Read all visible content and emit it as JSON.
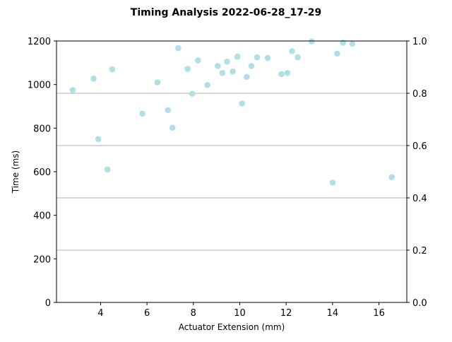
{
  "chart_data": {
    "type": "scatter",
    "title": "Timing Analysis 2022-06-28_17-29",
    "xlabel": "Actuator Extension (mm)",
    "ylabel": "Time (ms)",
    "xlim": [
      2.1,
      17.2
    ],
    "ylim": [
      0,
      1200
    ],
    "y2lim": [
      0,
      1.0
    ],
    "xticks": [
      4,
      6,
      8,
      10,
      12,
      14,
      16
    ],
    "yticks": [
      0,
      200,
      400,
      600,
      800,
      1000,
      1200
    ],
    "y2ticks": [
      0.0,
      0.2,
      0.4,
      0.6,
      0.8,
      1.0
    ],
    "y2tick_labels": [
      "0.0",
      "0.2",
      "0.4",
      "0.6",
      "0.8",
      "1.0"
    ],
    "grid": "horizontal lines at right-axis ticks",
    "marker_color": "#b0e0e6",
    "grid_color": "#b0b0b0",
    "points": [
      {
        "x": 2.8,
        "y": 975
      },
      {
        "x": 3.7,
        "y": 1027
      },
      {
        "x": 3.9,
        "y": 750
      },
      {
        "x": 4.3,
        "y": 610
      },
      {
        "x": 4.5,
        "y": 1070
      },
      {
        "x": 5.8,
        "y": 867
      },
      {
        "x": 6.45,
        "y": 1010
      },
      {
        "x": 6.9,
        "y": 883
      },
      {
        "x": 7.1,
        "y": 802
      },
      {
        "x": 7.35,
        "y": 1167
      },
      {
        "x": 7.75,
        "y": 1072
      },
      {
        "x": 7.95,
        "y": 958
      },
      {
        "x": 8.2,
        "y": 1111
      },
      {
        "x": 8.6,
        "y": 998
      },
      {
        "x": 9.05,
        "y": 1085
      },
      {
        "x": 9.25,
        "y": 1053
      },
      {
        "x": 9.45,
        "y": 1105
      },
      {
        "x": 9.7,
        "y": 1060
      },
      {
        "x": 9.9,
        "y": 1128
      },
      {
        "x": 10.1,
        "y": 913
      },
      {
        "x": 10.3,
        "y": 1035
      },
      {
        "x": 10.5,
        "y": 1085
      },
      {
        "x": 10.75,
        "y": 1125
      },
      {
        "x": 11.2,
        "y": 1122
      },
      {
        "x": 11.8,
        "y": 1048
      },
      {
        "x": 12.05,
        "y": 1053
      },
      {
        "x": 12.25,
        "y": 1153
      },
      {
        "x": 12.5,
        "y": 1125
      },
      {
        "x": 13.1,
        "y": 1198
      },
      {
        "x": 14.0,
        "y": 550
      },
      {
        "x": 14.2,
        "y": 1142
      },
      {
        "x": 14.45,
        "y": 1192
      },
      {
        "x": 14.85,
        "y": 1187
      },
      {
        "x": 16.55,
        "y": 575
      }
    ]
  }
}
